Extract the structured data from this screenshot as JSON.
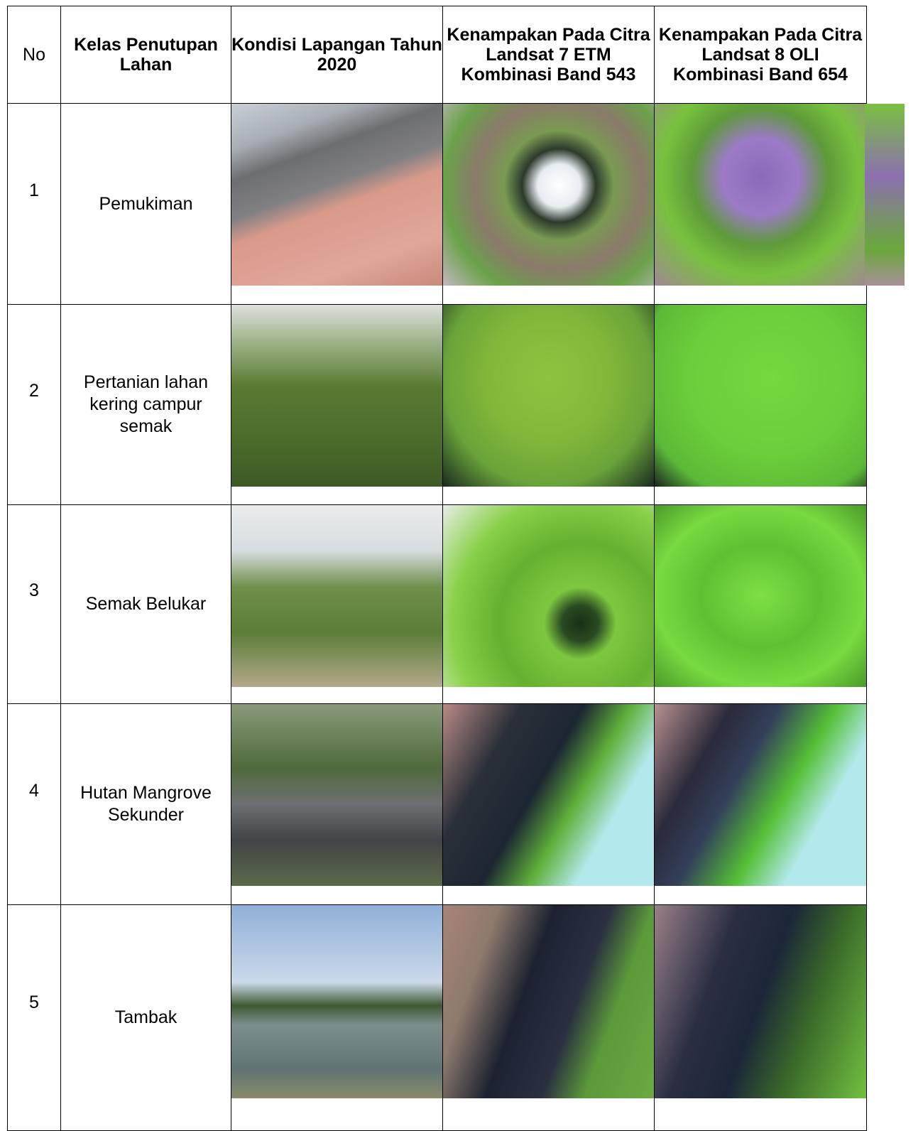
{
  "table": {
    "header": [
      "No",
      "Kelas Penutupan Lahan",
      "Kondisi Lapangan Tahun 2020",
      "Kenampakan Pada Citra Landsat 7 ETM Kombinasi Band 543",
      "Kenampakan Pada Citra Landsat 8 OLI Kombinasi Band 654"
    ],
    "rows": [
      [
        "1",
        "Pemukiman"
      ],
      [
        "2",
        "Pertanian lahan kering campur semak"
      ],
      [
        "3",
        "Semak Belukar"
      ],
      [
        "4",
        "Hutan Mangrove Sekunder"
      ],
      [
        "5",
        "Tambak"
      ]
    ]
  }
}
